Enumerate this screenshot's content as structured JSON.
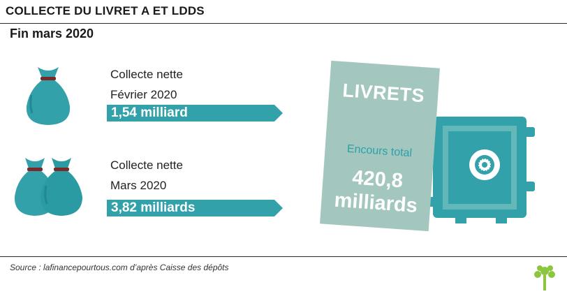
{
  "header": {
    "title": "COLLECTE DU LIVRET A ET LDDS",
    "subtitle": "Fin mars 2020"
  },
  "items": [
    {
      "line1": "Collecte nette",
      "line2": "Février 2020",
      "amount": "1,54 milliard",
      "icon": "money-bag-icon"
    },
    {
      "line1": "Collecte nette",
      "line2": "Mars 2020",
      "amount": "3,82 milliards",
      "icon": "money-bags-icon"
    }
  ],
  "card": {
    "title": "LIVRETS",
    "subtitle": "Encours total",
    "value": "420,8",
    "unit": "milliards"
  },
  "footer": {
    "source": "Source : lafinancepourtous.com d’après Caisse des dépôts",
    "logo_icon": "tree-logo-icon"
  },
  "colors": {
    "teal": "#33a1aa",
    "card": "#a3c7be",
    "tie": "#7a2a2a",
    "safe_light": "#62b7b8"
  }
}
